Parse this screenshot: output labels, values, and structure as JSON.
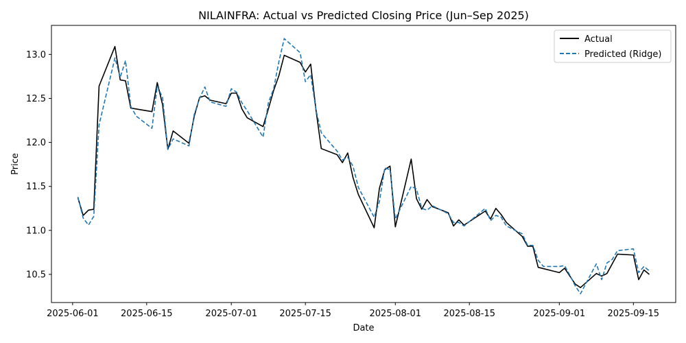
{
  "chart_data": {
    "type": "line",
    "title": "NILAINFRA: Actual vs Predicted Closing Price (Jun–Sep 2025)",
    "xlabel": "Date",
    "ylabel": "Price",
    "xlim": [
      "2025-05-28",
      "2025-09-23"
    ],
    "ylim": [
      10.18,
      13.33
    ],
    "x_ticks": [
      "2025-06-01",
      "2025-06-15",
      "2025-07-01",
      "2025-07-15",
      "2025-08-01",
      "2025-08-15",
      "2025-09-01",
      "2025-09-15"
    ],
    "y_ticks": [
      10.5,
      11.0,
      11.5,
      12.0,
      12.5,
      13.0
    ],
    "y_tick_labels": [
      "10.5",
      "11.0",
      "11.5",
      "12.0",
      "12.5",
      "13.0"
    ],
    "grid": false,
    "legend_position": "top-right",
    "series": [
      {
        "name": "Actual",
        "color": "#000000",
        "style": "solid",
        "points": [
          [
            "2025-06-02",
            11.37
          ],
          [
            "2025-06-03",
            11.17
          ],
          [
            "2025-06-04",
            11.23
          ],
          [
            "2025-06-05",
            11.24
          ],
          [
            "2025-06-06",
            12.64
          ],
          [
            "2025-06-09",
            13.09
          ],
          [
            "2025-06-10",
            12.71
          ],
          [
            "2025-06-11",
            12.7
          ],
          [
            "2025-06-12",
            12.39
          ],
          [
            "2025-06-16",
            12.35
          ],
          [
            "2025-06-17",
            12.68
          ],
          [
            "2025-06-18",
            12.43
          ],
          [
            "2025-06-19",
            11.92
          ],
          [
            "2025-06-20",
            12.13
          ],
          [
            "2025-06-23",
            11.99
          ],
          [
            "2025-06-24",
            12.3
          ],
          [
            "2025-06-25",
            12.51
          ],
          [
            "2025-06-26",
            12.53
          ],
          [
            "2025-06-27",
            12.48
          ],
          [
            "2025-06-30",
            12.44
          ],
          [
            "2025-07-01",
            12.56
          ],
          [
            "2025-07-02",
            12.56
          ],
          [
            "2025-07-03",
            12.38
          ],
          [
            "2025-07-04",
            12.28
          ],
          [
            "2025-07-07",
            12.18
          ],
          [
            "2025-07-08",
            12.38
          ],
          [
            "2025-07-09",
            12.59
          ],
          [
            "2025-07-10",
            12.76
          ],
          [
            "2025-07-11",
            12.99
          ],
          [
            "2025-07-14",
            12.91
          ],
          [
            "2025-07-15",
            12.8
          ],
          [
            "2025-07-16",
            12.89
          ],
          [
            "2025-07-17",
            12.37
          ],
          [
            "2025-07-18",
            11.93
          ],
          [
            "2025-07-21",
            11.86
          ],
          [
            "2025-07-22",
            11.77
          ],
          [
            "2025-07-23",
            11.88
          ],
          [
            "2025-07-24",
            11.6
          ],
          [
            "2025-07-25",
            11.41
          ],
          [
            "2025-07-28",
            11.03
          ],
          [
            "2025-07-29",
            11.48
          ],
          [
            "2025-07-30",
            11.69
          ],
          [
            "2025-07-31",
            11.73
          ],
          [
            "2025-08-01",
            11.04
          ],
          [
            "2025-08-04",
            11.81
          ],
          [
            "2025-08-05",
            11.36
          ],
          [
            "2025-08-06",
            11.24
          ],
          [
            "2025-08-07",
            11.35
          ],
          [
            "2025-08-08",
            11.27
          ],
          [
            "2025-08-11",
            11.2
          ],
          [
            "2025-08-12",
            11.05
          ],
          [
            "2025-08-13",
            11.12
          ],
          [
            "2025-08-14",
            11.06
          ],
          [
            "2025-08-18",
            11.22
          ],
          [
            "2025-08-19",
            11.13
          ],
          [
            "2025-08-20",
            11.25
          ],
          [
            "2025-08-21",
            11.18
          ],
          [
            "2025-08-22",
            11.09
          ],
          [
            "2025-08-25",
            10.93
          ],
          [
            "2025-08-26",
            10.82
          ],
          [
            "2025-08-27",
            10.82
          ],
          [
            "2025-08-28",
            10.58
          ],
          [
            "2025-09-01",
            10.52
          ],
          [
            "2025-09-02",
            10.57
          ],
          [
            "2025-09-03",
            10.48
          ],
          [
            "2025-09-04",
            10.39
          ],
          [
            "2025-09-05",
            10.35
          ],
          [
            "2025-09-08",
            10.51
          ],
          [
            "2025-09-09",
            10.48
          ],
          [
            "2025-09-10",
            10.51
          ],
          [
            "2025-09-12",
            10.73
          ],
          [
            "2025-09-15",
            10.72
          ],
          [
            "2025-09-16",
            10.44
          ],
          [
            "2025-09-17",
            10.55
          ],
          [
            "2025-09-18",
            10.5
          ]
        ]
      },
      {
        "name": "Predicted (Ridge)",
        "color": "#1f77b4",
        "style": "dashed",
        "points": [
          [
            "2025-06-02",
            11.38
          ],
          [
            "2025-06-03",
            11.14
          ],
          [
            "2025-06-04",
            11.06
          ],
          [
            "2025-06-05",
            11.16
          ],
          [
            "2025-06-06",
            12.2
          ],
          [
            "2025-06-09",
            12.96
          ],
          [
            "2025-06-10",
            12.74
          ],
          [
            "2025-06-11",
            12.93
          ],
          [
            "2025-06-12",
            12.41
          ],
          [
            "2025-06-13",
            12.3
          ],
          [
            "2025-06-16",
            12.16
          ],
          [
            "2025-06-17",
            12.64
          ],
          [
            "2025-06-18",
            12.51
          ],
          [
            "2025-06-19",
            11.92
          ],
          [
            "2025-06-20",
            12.04
          ],
          [
            "2025-06-23",
            11.96
          ],
          [
            "2025-06-24",
            12.32
          ],
          [
            "2025-06-25",
            12.5
          ],
          [
            "2025-06-26",
            12.63
          ],
          [
            "2025-06-27",
            12.46
          ],
          [
            "2025-06-30",
            12.41
          ],
          [
            "2025-07-01",
            12.61
          ],
          [
            "2025-07-02",
            12.57
          ],
          [
            "2025-07-03",
            12.45
          ],
          [
            "2025-07-04",
            12.36
          ],
          [
            "2025-07-07",
            12.06
          ],
          [
            "2025-07-08",
            12.45
          ],
          [
            "2025-07-09",
            12.61
          ],
          [
            "2025-07-10",
            12.92
          ],
          [
            "2025-07-11",
            13.18
          ],
          [
            "2025-07-14",
            13.02
          ],
          [
            "2025-07-15",
            12.69
          ],
          [
            "2025-07-16",
            12.77
          ],
          [
            "2025-07-17",
            12.37
          ],
          [
            "2025-07-18",
            12.11
          ],
          [
            "2025-07-21",
            11.9
          ],
          [
            "2025-07-22",
            11.8
          ],
          [
            "2025-07-23",
            11.83
          ],
          [
            "2025-07-24",
            11.73
          ],
          [
            "2025-07-25",
            11.49
          ],
          [
            "2025-07-28",
            11.15
          ],
          [
            "2025-07-29",
            11.33
          ],
          [
            "2025-07-30",
            11.71
          ],
          [
            "2025-07-31",
            11.69
          ],
          [
            "2025-08-01",
            11.13
          ],
          [
            "2025-08-04",
            11.5
          ],
          [
            "2025-08-05",
            11.47
          ],
          [
            "2025-08-06",
            11.25
          ],
          [
            "2025-08-07",
            11.23
          ],
          [
            "2025-08-08",
            11.28
          ],
          [
            "2025-08-11",
            11.19
          ],
          [
            "2025-08-12",
            11.09
          ],
          [
            "2025-08-13",
            11.09
          ],
          [
            "2025-08-14",
            11.05
          ],
          [
            "2025-08-18",
            11.25
          ],
          [
            "2025-08-19",
            11.11
          ],
          [
            "2025-08-20",
            11.17
          ],
          [
            "2025-08-21",
            11.15
          ],
          [
            "2025-08-22",
            11.05
          ],
          [
            "2025-08-25",
            10.96
          ],
          [
            "2025-08-26",
            10.83
          ],
          [
            "2025-08-27",
            10.83
          ],
          [
            "2025-08-28",
            10.66
          ],
          [
            "2025-08-29",
            10.59
          ],
          [
            "2025-09-01",
            10.59
          ],
          [
            "2025-09-02",
            10.6
          ],
          [
            "2025-09-03",
            10.49
          ],
          [
            "2025-09-04",
            10.37
          ],
          [
            "2025-09-05",
            10.28
          ],
          [
            "2025-09-08",
            10.62
          ],
          [
            "2025-09-09",
            10.44
          ],
          [
            "2025-09-10",
            10.63
          ],
          [
            "2025-09-11",
            10.67
          ],
          [
            "2025-09-12",
            10.77
          ],
          [
            "2025-09-15",
            10.79
          ],
          [
            "2025-09-16",
            10.52
          ],
          [
            "2025-09-17",
            10.59
          ],
          [
            "2025-09-18",
            10.54
          ]
        ]
      }
    ]
  }
}
